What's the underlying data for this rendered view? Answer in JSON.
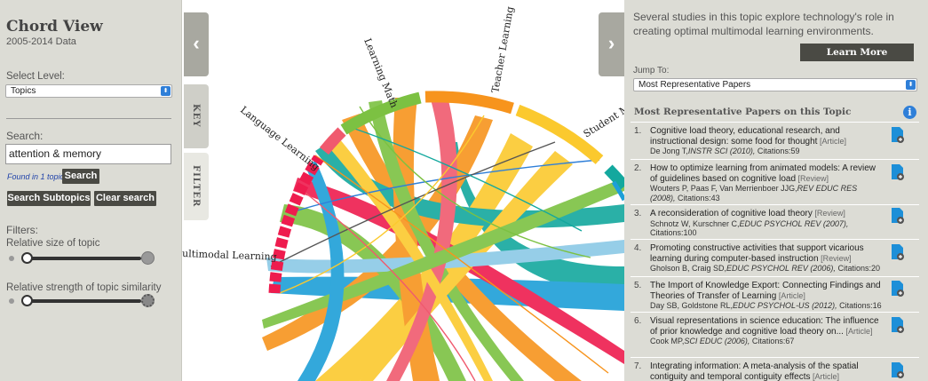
{
  "app": {
    "title": "Chord View",
    "subtitle": "2005-2014 Data"
  },
  "left": {
    "select_level_label": "Select Level:",
    "level_value": "Topics",
    "search_label": "Search:",
    "search_value": "attention & memory",
    "found_text": "Found in 1 topic",
    "search_button": "Search",
    "search_subtopics_button": "Search Subtopics",
    "clear_search_button": "Clear search",
    "filters_label": "Filters:",
    "slider1_label": "Relative size of topic",
    "slider2_label": "Relative strength of topic similarity",
    "slider1_value": 0.02,
    "slider2_value": 0.02
  },
  "tabs": {
    "key_label": "KEY",
    "filter_label": "FILTER",
    "left_arrow": "‹",
    "right_arrow": "›"
  },
  "chart_data": {
    "type": "chord",
    "labels": [
      "Learning Math",
      "Teacher Learning",
      "Student Mo",
      "Language Learning",
      "ultimodal Learning"
    ],
    "colors": {
      "learning_math": "#7cc142",
      "teacher_learning": "#f7941d",
      "student_motivation": "#fbc92e",
      "language_learning": "#f05a6e",
      "multimodal_learning": "#ee1c4e",
      "teal": "#13a89e",
      "blue": "#1d9fd8"
    }
  },
  "right": {
    "description": "Several studies in this topic explore technology's role in creating optimal multimodal learning environments.",
    "learn_more": "Learn More",
    "jump_to_label": "Jump To:",
    "jump_value": "Most Representative Papers",
    "papers_title": "Most Representative Papers on this Topic",
    "info_icon": "i",
    "papers": [
      {
        "num": "1.",
        "title": "Cognitive load theory, educational research, and instructional design: some food for thought",
        "type": "[Article]",
        "meta": "De Jong T,",
        "journal": "INSTR SCI (2010),",
        "cites": "Citations:59"
      },
      {
        "num": "2.",
        "title": "How to optimize learning from animated models: A review of guidelines based on cognitive load",
        "type": "[Review]",
        "meta": "Wouters P, Paas F, Van Merrienboer JJG,",
        "journal": "REV EDUC RES (2008),",
        "cites": "Citations:43"
      },
      {
        "num": "3.",
        "title": "A reconsideration of cognitive load theory",
        "type": "[Review]",
        "meta": "Schnotz W, Kurschner C,",
        "journal": "EDUC PSYCHOL REV (2007),",
        "cites": "Citations:100"
      },
      {
        "num": "4.",
        "title": "Promoting constructive activities that support vicarious learning during computer-based instruction",
        "type": "[Review]",
        "meta": "Gholson B, Craig SD,",
        "journal": "EDUC PSYCHOL REV (2006),",
        "cites": "Citations:20"
      },
      {
        "num": "5.",
        "title": "The Import of Knowledge Export: Connecting Findings and Theories of Transfer of Learning",
        "type": "[Article]",
        "meta": "Day SB, Goldstone RL,",
        "journal": "EDUC PSYCHOL-US (2012),",
        "cites": "Citations:16"
      },
      {
        "num": "6.",
        "title": "Visual representations in science education: The influence of prior knowledge and cognitive load theory on...",
        "type": "[Article]",
        "meta": "Cook MP,",
        "journal": "SCI EDUC (2006),",
        "cites": "Citations:67"
      },
      {
        "num": "7.",
        "title": "Integrating information: A meta-analysis of the spatial contiguity and temporal contiguity effects",
        "type": "[Article]",
        "meta": "",
        "journal": "",
        "cites": ""
      }
    ]
  }
}
